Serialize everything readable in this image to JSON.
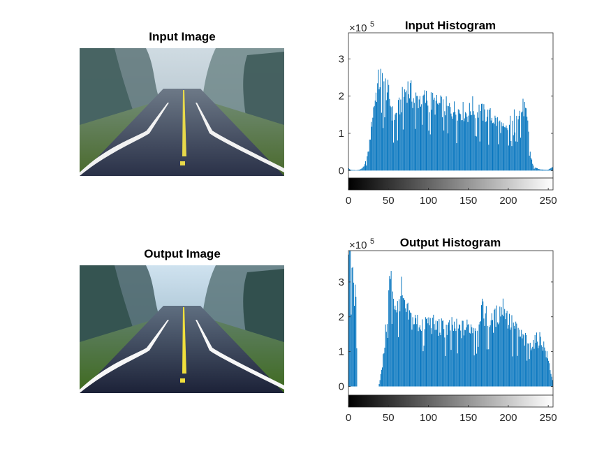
{
  "figure": {
    "input_image_title": "Input Image",
    "output_image_title": "Output Image"
  },
  "colors": {
    "bar": "#0072bd",
    "axis": "#262626"
  },
  "chart_data": [
    {
      "type": "bar",
      "title": "Input Histogram",
      "xlabel": "",
      "ylabel": "",
      "y_exponent_label": "×10",
      "y_exponent": "5",
      "xlim": [
        0,
        256
      ],
      "ylim": [
        -0.2,
        3.7
      ],
      "y_scale": 100000,
      "xticks": [
        0,
        50,
        100,
        150,
        200,
        250
      ],
      "yticks": [
        0,
        1,
        2,
        3
      ],
      "grid": false,
      "colorbar": "grayscale",
      "profile": [
        [
          0,
          0.1
        ],
        [
          1,
          0.05
        ],
        [
          3,
          0.02
        ],
        [
          10,
          0.01
        ],
        [
          15,
          0.03
        ],
        [
          20,
          0.12
        ],
        [
          25,
          0.5
        ],
        [
          28,
          1.1
        ],
        [
          30,
          1.5
        ],
        [
          33,
          2.0
        ],
        [
          36,
          2.3
        ],
        [
          38,
          2.5
        ],
        [
          40,
          2.6
        ],
        [
          42,
          2.65
        ],
        [
          45,
          2.5
        ],
        [
          48,
          2.3
        ],
        [
          52,
          2.0
        ],
        [
          55,
          1.6
        ],
        [
          58,
          1.5
        ],
        [
          62,
          1.7
        ],
        [
          66,
          1.9
        ],
        [
          70,
          2.2
        ],
        [
          74,
          2.35
        ],
        [
          78,
          2.2
        ],
        [
          82,
          2.0
        ],
        [
          90,
          2.05
        ],
        [
          100,
          2.0
        ],
        [
          110,
          1.85
        ],
        [
          120,
          1.8
        ],
        [
          130,
          1.72
        ],
        [
          140,
          1.7
        ],
        [
          150,
          1.6
        ],
        [
          155,
          1.8
        ],
        [
          160,
          1.75
        ],
        [
          170,
          1.6
        ],
        [
          180,
          1.5
        ],
        [
          190,
          1.3
        ],
        [
          195,
          1.1
        ],
        [
          200,
          1.2
        ],
        [
          205,
          1.5
        ],
        [
          210,
          1.8
        ],
        [
          215,
          1.65
        ],
        [
          220,
          1.8
        ],
        [
          225,
          1.2
        ],
        [
          228,
          0.4
        ],
        [
          232,
          0.1
        ],
        [
          240,
          0.03
        ],
        [
          250,
          0.02
        ],
        [
          255,
          0.1
        ]
      ]
    },
    {
      "type": "bar",
      "title": "Output Histogram",
      "xlabel": "",
      "ylabel": "",
      "y_exponent_label": "×10",
      "y_exponent": "5",
      "xlim": [
        0,
        256
      ],
      "ylim": [
        -0.25,
        3.9
      ],
      "y_scale": 100000,
      "xticks": [
        0,
        50,
        100,
        150,
        200,
        250
      ],
      "yticks": [
        0,
        1,
        2,
        3
      ],
      "grid": false,
      "colorbar": "grayscale",
      "profile": [
        [
          0,
          3.9
        ],
        [
          2,
          3.9
        ],
        [
          4,
          3.9
        ],
        [
          6,
          3.0
        ],
        [
          8,
          2.8
        ],
        [
          10,
          2.2
        ],
        [
          11,
          0.0
        ],
        [
          38,
          0.0
        ],
        [
          40,
          0.3
        ],
        [
          42,
          0.5
        ],
        [
          45,
          1.2
        ],
        [
          48,
          2.0
        ],
        [
          52,
          3.3
        ],
        [
          55,
          3.1
        ],
        [
          58,
          2.5
        ],
        [
          62,
          2.4
        ],
        [
          66,
          2.9
        ],
        [
          70,
          2.3
        ],
        [
          80,
          2.0
        ],
        [
          90,
          1.9
        ],
        [
          100,
          1.95
        ],
        [
          110,
          1.8
        ],
        [
          120,
          1.75
        ],
        [
          130,
          1.8
        ],
        [
          140,
          1.7
        ],
        [
          150,
          1.8
        ],
        [
          160,
          1.85
        ],
        [
          165,
          2.3
        ],
        [
          170,
          2.2
        ],
        [
          180,
          1.9
        ],
        [
          190,
          2.3
        ],
        [
          195,
          2.45
        ],
        [
          200,
          2.0
        ],
        [
          210,
          1.7
        ],
        [
          220,
          1.4
        ],
        [
          230,
          1.3
        ],
        [
          240,
          1.45
        ],
        [
          245,
          1.2
        ],
        [
          250,
          0.8
        ],
        [
          253,
          0.5
        ],
        [
          255,
          0.2
        ]
      ]
    }
  ]
}
